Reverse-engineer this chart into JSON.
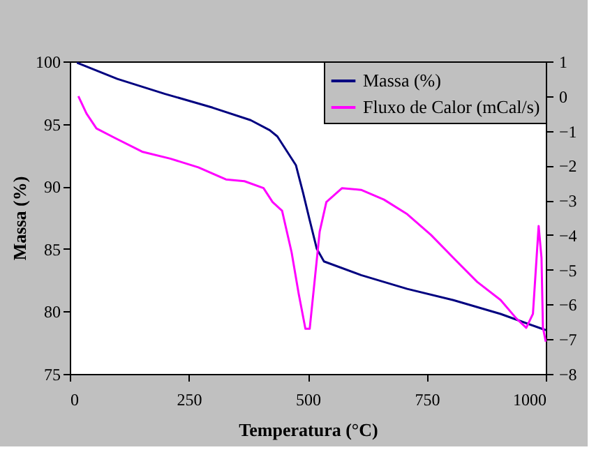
{
  "chart_data": {
    "type": "line",
    "xlabel": "Temperatura (°C)",
    "ylabel": "Massa (%)",
    "xlim": [
      0,
      1000
    ],
    "xticks": [
      0,
      250,
      500,
      750,
      1000
    ],
    "ylim": [
      75,
      100
    ],
    "yticks": [
      75,
      80,
      85,
      90,
      95,
      100
    ],
    "y2lim": [
      -8,
      1
    ],
    "y2ticks": [
      -8,
      -7,
      -6,
      -5,
      -4,
      -3,
      -2,
      -1,
      0,
      1
    ],
    "legend": "top right",
    "grid": false,
    "marker": "none",
    "line_style": "solid",
    "series": [
      {
        "name": "Massa (%)",
        "color": "#000080",
        "x": [
          15,
          100,
          200,
          300,
          380,
          420,
          436,
          475,
          490,
          504,
          519,
          534,
          612,
          709,
          806,
          905,
          1000
        ],
        "values": [
          99.9,
          98.6,
          97.4,
          96.3,
          95.3,
          94.5,
          94.0,
          91.7,
          89.5,
          87.3,
          85.0,
          84.0,
          82.9,
          81.8,
          80.9,
          79.8,
          78.5
        ]
      },
      {
        "name": "Fluxo de Calor (mCal/s)",
        "color": "#ff00ff",
        "axis": "y2",
        "x": [
          18,
          35,
          56,
          94,
          152,
          211,
          270,
          328,
          367,
          407,
          426,
          446,
          466,
          481,
          495,
          504,
          513,
          525,
          539,
          572,
          612,
          660,
          709,
          759,
          806,
          856,
          905,
          938,
          959,
          973,
          985,
          991,
          994,
          1000
        ],
        "values": [
          0.0,
          -0.5,
          -0.93,
          -1.2,
          -1.6,
          -1.8,
          -2.05,
          -2.4,
          -2.45,
          -2.65,
          -3.05,
          -3.3,
          -4.5,
          -5.7,
          -6.7,
          -6.7,
          -5.5,
          -3.9,
          -3.05,
          -2.65,
          -2.7,
          -2.98,
          -3.4,
          -4.0,
          -4.66,
          -5.35,
          -5.87,
          -6.4,
          -6.67,
          -6.27,
          -3.74,
          -4.66,
          -6.67,
          -7.07
        ]
      }
    ]
  }
}
